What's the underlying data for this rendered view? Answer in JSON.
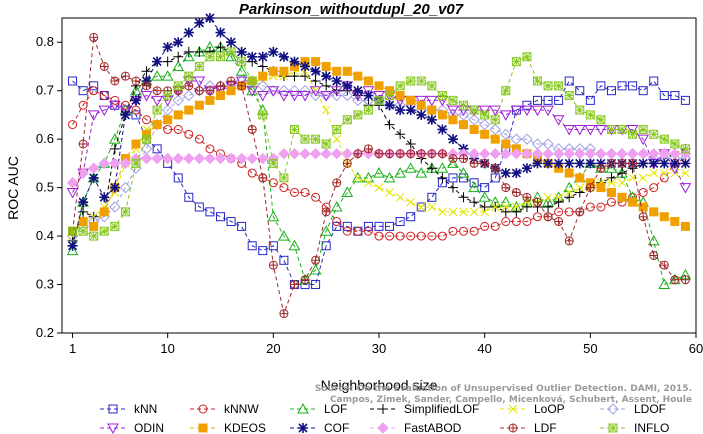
{
  "chart_data": {
    "type": "line",
    "title": "Parkinson_withoutdupl_20_v07",
    "xlabel": "Neighborhood size",
    "ylabel": "ROC AUC",
    "xlim": [
      0,
      60
    ],
    "ylim": [
      0.2,
      0.85
    ],
    "xticks": [
      1,
      10,
      20,
      30,
      40,
      50,
      60
    ],
    "yticks": [
      0.2,
      0.3,
      0.4,
      0.5,
      0.6,
      0.7,
      0.8
    ],
    "grid": false,
    "legend_position": "bottom",
    "x": [
      1,
      2,
      3,
      4,
      5,
      6,
      7,
      8,
      9,
      10,
      11,
      12,
      13,
      14,
      15,
      16,
      17,
      18,
      19,
      20,
      21,
      22,
      23,
      24,
      25,
      26,
      27,
      28,
      29,
      30,
      31,
      32,
      33,
      34,
      35,
      36,
      37,
      38,
      39,
      40,
      41,
      42,
      43,
      44,
      45,
      46,
      47,
      48,
      49,
      50,
      51,
      52,
      53,
      54,
      55,
      56,
      57,
      58,
      59
    ],
    "series": [
      {
        "name": "kNN",
        "color": "#2727c8",
        "marker": "square",
        "values": [
          0.72,
          0.7,
          0.71,
          0.69,
          0.67,
          0.66,
          0.65,
          0.6,
          0.58,
          0.55,
          0.52,
          0.48,
          0.46,
          0.45,
          0.44,
          0.43,
          0.42,
          0.38,
          0.37,
          0.38,
          0.35,
          0.3,
          0.3,
          0.3,
          0.38,
          0.42,
          0.42,
          0.41,
          0.42,
          0.42,
          0.42,
          0.43,
          0.44,
          0.46,
          0.48,
          0.51,
          0.52,
          0.52,
          0.51,
          0.5,
          0.52,
          0.58,
          0.66,
          0.67,
          0.68,
          0.68,
          0.68,
          0.72,
          0.7,
          0.68,
          0.71,
          0.7,
          0.71,
          0.71,
          0.7,
          0.72,
          0.69,
          0.69,
          0.68
        ]
      },
      {
        "name": "kNNW",
        "color": "#d02020",
        "marker": "circle",
        "values": [
          0.63,
          0.67,
          0.7,
          0.69,
          0.68,
          0.67,
          0.66,
          0.64,
          0.63,
          0.62,
          0.62,
          0.61,
          0.6,
          0.58,
          0.57,
          0.56,
          0.55,
          0.53,
          0.52,
          0.51,
          0.5,
          0.49,
          0.49,
          0.48,
          0.46,
          0.43,
          0.41,
          0.41,
          0.41,
          0.4,
          0.4,
          0.4,
          0.4,
          0.4,
          0.4,
          0.4,
          0.41,
          0.41,
          0.41,
          0.42,
          0.42,
          0.43,
          0.43,
          0.43,
          0.44,
          0.44,
          0.45,
          0.45,
          0.45,
          0.46,
          0.46,
          0.47,
          0.47,
          0.48,
          0.49,
          0.5,
          0.52,
          0.55,
          0.56
        ]
      },
      {
        "name": "LOF",
        "color": "#18b018",
        "marker": "triangle-up",
        "values": [
          0.37,
          0.47,
          0.52,
          0.55,
          0.6,
          0.66,
          0.7,
          0.72,
          0.73,
          0.73,
          0.75,
          0.77,
          0.78,
          0.79,
          0.79,
          0.77,
          0.74,
          0.7,
          0.66,
          0.44,
          0.4,
          0.38,
          0.31,
          0.33,
          0.41,
          0.46,
          0.49,
          0.52,
          0.52,
          0.53,
          0.52,
          0.53,
          0.54,
          0.53,
          0.54,
          0.54,
          0.55,
          0.53,
          0.5,
          0.48,
          0.47,
          0.47,
          0.46,
          0.47,
          0.48,
          0.47,
          0.48,
          0.5,
          0.52,
          0.55,
          0.54,
          0.54,
          0.53,
          0.48,
          0.47,
          0.39,
          0.3,
          0.31,
          0.32
        ]
      },
      {
        "name": "SimplifiedLOF",
        "color": "#000000",
        "marker": "plus",
        "values": [
          0.39,
          0.45,
          0.44,
          0.45,
          0.58,
          0.65,
          0.71,
          0.74,
          0.76,
          0.76,
          0.77,
          0.78,
          0.78,
          0.78,
          0.79,
          0.78,
          0.76,
          0.76,
          0.75,
          0.74,
          0.73,
          0.73,
          0.73,
          0.72,
          0.71,
          0.7,
          0.7,
          0.69,
          0.67,
          0.67,
          0.63,
          0.61,
          0.59,
          0.56,
          0.54,
          0.52,
          0.5,
          0.48,
          0.47,
          0.46,
          0.46,
          0.45,
          0.45,
          0.46,
          0.46,
          0.46,
          0.47,
          0.48,
          0.49,
          0.5,
          0.51,
          0.52,
          0.53,
          0.54,
          0.55,
          0.55,
          0.56,
          0.57,
          0.58
        ]
      },
      {
        "name": "LoOP",
        "color": "#e4e400",
        "marker": "x",
        "values": [
          0.4,
          0.43,
          0.44,
          0.46,
          0.49,
          0.55,
          0.58,
          0.62,
          0.63,
          0.64,
          0.65,
          0.66,
          0.67,
          0.68,
          0.69,
          0.7,
          0.71,
          0.72,
          0.72,
          0.73,
          0.73,
          0.74,
          0.74,
          0.7,
          0.66,
          0.6,
          0.55,
          0.52,
          0.51,
          0.5,
          0.49,
          0.48,
          0.47,
          0.46,
          0.46,
          0.45,
          0.45,
          0.45,
          0.45,
          0.45,
          0.46,
          0.46,
          0.46,
          0.47,
          0.47,
          0.48,
          0.48,
          0.49,
          0.5,
          0.5,
          0.51,
          0.51,
          0.51,
          0.52,
          0.52,
          0.53,
          0.53,
          0.53,
          0.53
        ]
      },
      {
        "name": "LDOF",
        "color": "#a0a0e8",
        "marker": "diamond",
        "values": [
          0.4,
          0.42,
          0.43,
          0.44,
          0.46,
          0.5,
          0.54,
          0.58,
          0.63,
          0.66,
          0.68,
          0.69,
          0.7,
          0.71,
          0.71,
          0.71,
          0.72,
          0.72,
          0.71,
          0.7,
          0.7,
          0.7,
          0.7,
          0.69,
          0.69,
          0.69,
          0.69,
          0.68,
          0.68,
          0.68,
          0.67,
          0.67,
          0.67,
          0.66,
          0.66,
          0.66,
          0.65,
          0.65,
          0.64,
          0.63,
          0.62,
          0.61,
          0.6,
          0.6,
          0.59,
          0.59,
          0.58,
          0.58,
          0.58,
          0.58,
          0.57,
          0.57,
          0.57,
          0.57,
          0.57,
          0.56,
          0.56,
          0.56,
          0.56
        ]
      },
      {
        "name": "ODIN",
        "color": "#a020d8",
        "marker": "triangle-down",
        "values": [
          0.49,
          0.53,
          0.65,
          0.66,
          0.67,
          0.66,
          0.68,
          0.69,
          0.68,
          0.68,
          0.7,
          0.72,
          0.72,
          0.7,
          0.7,
          0.71,
          0.72,
          0.7,
          0.69,
          0.7,
          0.69,
          0.69,
          0.69,
          0.7,
          0.69,
          0.7,
          0.71,
          0.69,
          0.7,
          0.69,
          0.69,
          0.68,
          0.68,
          0.68,
          0.68,
          0.68,
          0.66,
          0.66,
          0.66,
          0.66,
          0.66,
          0.65,
          0.66,
          0.66,
          0.66,
          0.66,
          0.64,
          0.62,
          0.62,
          0.62,
          0.62,
          0.62,
          0.62,
          0.62,
          0.6,
          0.55,
          0.57,
          0.54,
          0.5
        ]
      },
      {
        "name": "KDEOS",
        "color": "#f0a000",
        "marker": "square-filled",
        "values": [
          0.41,
          0.43,
          0.42,
          0.45,
          0.5,
          0.56,
          0.59,
          0.61,
          0.63,
          0.64,
          0.65,
          0.66,
          0.67,
          0.68,
          0.69,
          0.7,
          0.71,
          0.72,
          0.73,
          0.74,
          0.74,
          0.75,
          0.76,
          0.76,
          0.75,
          0.74,
          0.74,
          0.73,
          0.72,
          0.71,
          0.7,
          0.69,
          0.68,
          0.67,
          0.66,
          0.65,
          0.64,
          0.63,
          0.62,
          0.61,
          0.6,
          0.59,
          0.58,
          0.57,
          0.56,
          0.55,
          0.54,
          0.53,
          0.52,
          0.51,
          0.5,
          0.49,
          0.48,
          0.47,
          0.46,
          0.45,
          0.44,
          0.43,
          0.42
        ]
      },
      {
        "name": "COF",
        "color": "#101080",
        "marker": "star",
        "values": [
          0.38,
          0.47,
          0.52,
          0.48,
          0.5,
          0.65,
          0.68,
          0.72,
          0.76,
          0.79,
          0.8,
          0.82,
          0.84,
          0.85,
          0.82,
          0.8,
          0.78,
          0.77,
          0.77,
          0.78,
          0.77,
          0.76,
          0.75,
          0.74,
          0.73,
          0.72,
          0.71,
          0.7,
          0.69,
          0.68,
          0.67,
          0.66,
          0.66,
          0.65,
          0.64,
          0.62,
          0.6,
          0.58,
          0.56,
          0.55,
          0.54,
          0.53,
          0.53,
          0.54,
          0.55,
          0.55,
          0.55,
          0.55,
          0.55,
          0.55,
          0.55,
          0.55,
          0.55,
          0.55,
          0.55,
          0.55,
          0.55,
          0.55,
          0.55
        ]
      },
      {
        "name": "FastABOD",
        "color": "#f0a0f0",
        "marker": "diamond-filled",
        "values": [
          0.51,
          0.53,
          0.54,
          0.55,
          0.55,
          0.55,
          0.56,
          0.56,
          0.56,
          0.56,
          0.56,
          0.56,
          0.56,
          0.56,
          0.56,
          0.56,
          0.56,
          0.56,
          0.56,
          0.56,
          0.57,
          0.57,
          0.57,
          0.57,
          0.57,
          0.57,
          0.57,
          0.57,
          0.57,
          0.57,
          0.57,
          0.57,
          0.57,
          0.57,
          0.57,
          0.57,
          0.57,
          0.57,
          0.57,
          0.57,
          0.57,
          0.57,
          0.57,
          0.57,
          0.57,
          0.57,
          0.57,
          0.57,
          0.57,
          0.57,
          0.57,
          0.57,
          0.57,
          0.57,
          0.57,
          0.57,
          0.57,
          0.57,
          0.57
        ]
      },
      {
        "name": "LDF",
        "color": "#a02828",
        "marker": "circle-plus",
        "values": [
          0.41,
          0.59,
          0.81,
          0.75,
          0.72,
          0.73,
          0.72,
          0.71,
          0.7,
          0.7,
          0.7,
          0.71,
          0.7,
          0.7,
          0.71,
          0.72,
          0.71,
          0.62,
          0.52,
          0.34,
          0.24,
          0.3,
          0.31,
          0.35,
          0.45,
          0.51,
          0.55,
          0.57,
          0.58,
          0.57,
          0.57,
          0.57,
          0.57,
          0.57,
          0.57,
          0.57,
          0.56,
          0.56,
          0.55,
          0.55,
          0.54,
          0.5,
          0.49,
          0.48,
          0.47,
          0.44,
          0.43,
          0.39,
          0.45,
          0.5,
          0.54,
          0.55,
          0.55,
          0.55,
          0.44,
          0.36,
          0.34,
          0.31,
          0.31
        ]
      },
      {
        "name": "INFLO",
        "color": "#88c820",
        "marker": "star-box",
        "values": [
          0.41,
          0.41,
          0.4,
          0.41,
          0.42,
          0.45,
          0.55,
          0.6,
          0.66,
          0.69,
          0.71,
          0.73,
          0.75,
          0.77,
          0.77,
          0.78,
          0.76,
          0.72,
          0.65,
          0.55,
          0.52,
          0.62,
          0.6,
          0.6,
          0.59,
          0.62,
          0.64,
          0.65,
          0.66,
          0.68,
          0.69,
          0.71,
          0.72,
          0.72,
          0.71,
          0.69,
          0.68,
          0.67,
          0.66,
          0.65,
          0.64,
          0.7,
          0.76,
          0.77,
          0.72,
          0.71,
          0.71,
          0.69,
          0.66,
          0.65,
          0.64,
          0.62,
          0.62,
          0.61,
          0.62,
          0.61,
          0.6,
          0.59,
          0.58
        ]
      }
    ],
    "legend_order": [
      "kNN",
      "kNNW",
      "LOF",
      "SimplifiedLOF",
      "LoOP",
      "LDOF",
      "ODIN",
      "KDEOS",
      "COF",
      "FastABOD",
      "LDF",
      "INFLO"
    ]
  },
  "watermark": {
    "line1": "Source: On the Evaluation of Unsupervised Outlier Detection. DAMI, 2015.",
    "line2": "Campos, Zimek, Sander, Campello, Micenková, Schubert, Assent, Houle"
  }
}
